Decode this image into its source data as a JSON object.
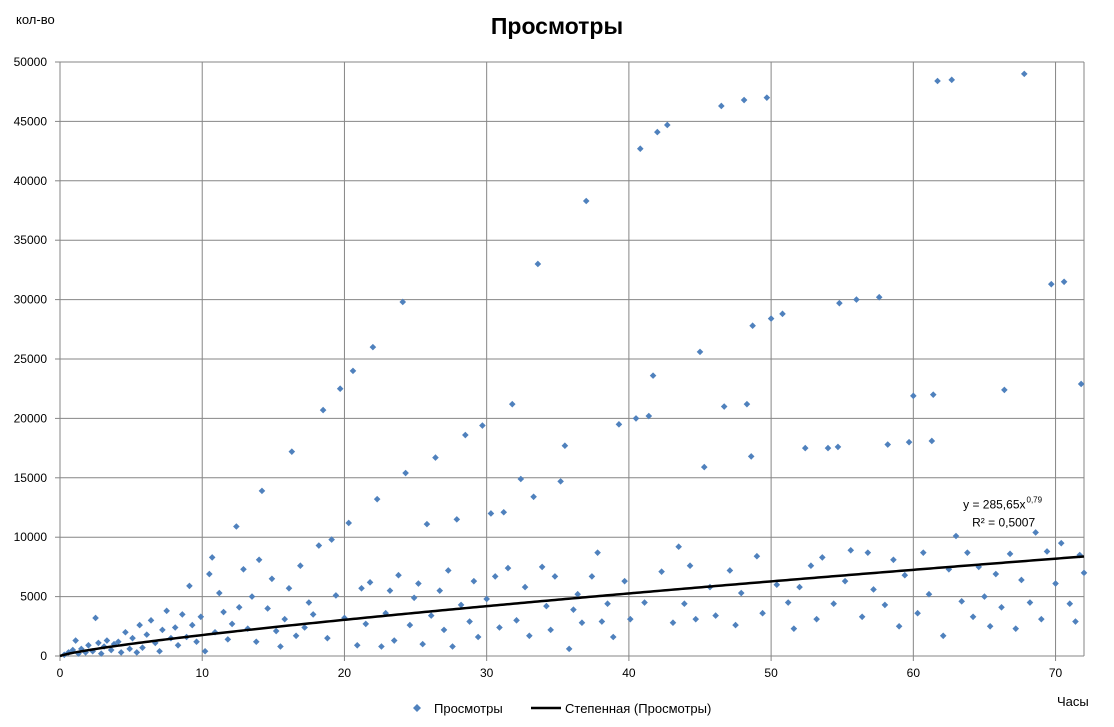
{
  "chart_data": {
    "type": "scatter",
    "title": "Просмотры",
    "xlabel": "Часы",
    "ylabel": "кол-во",
    "xlim": [
      0,
      72
    ],
    "ylim": [
      0,
      50000
    ],
    "x_ticks": [
      0,
      10,
      20,
      30,
      40,
      50,
      60,
      70
    ],
    "y_ticks": [
      0,
      5000,
      10000,
      15000,
      20000,
      25000,
      30000,
      35000,
      40000,
      45000,
      50000
    ],
    "grid": true,
    "legend_position": "bottom",
    "series": [
      {
        "name": "Просмотры",
        "kind": "scatter",
        "color": "#4f81bd",
        "points": [
          [
            0.3,
            100
          ],
          [
            0.6,
            300
          ],
          [
            0.9,
            500
          ],
          [
            1.1,
            1300
          ],
          [
            1.3,
            200
          ],
          [
            1.5,
            600
          ],
          [
            1.8,
            300
          ],
          [
            2.0,
            900
          ],
          [
            2.3,
            400
          ],
          [
            2.5,
            3200
          ],
          [
            2.7,
            1100
          ],
          [
            2.9,
            200
          ],
          [
            3.1,
            800
          ],
          [
            3.3,
            1300
          ],
          [
            3.6,
            500
          ],
          [
            3.8,
            1000
          ],
          [
            4.1,
            1200
          ],
          [
            4.3,
            300
          ],
          [
            4.6,
            2000
          ],
          [
            4.9,
            600
          ],
          [
            5.1,
            1500
          ],
          [
            5.4,
            300
          ],
          [
            5.6,
            2600
          ],
          [
            5.8,
            700
          ],
          [
            6.1,
            1800
          ],
          [
            6.4,
            3000
          ],
          [
            6.7,
            1100
          ],
          [
            7.0,
            400
          ],
          [
            7.2,
            2200
          ],
          [
            7.5,
            3800
          ],
          [
            7.8,
            1500
          ],
          [
            8.1,
            2400
          ],
          [
            8.3,
            900
          ],
          [
            8.6,
            3500
          ],
          [
            8.9,
            1600
          ],
          [
            9.1,
            5900
          ],
          [
            9.3,
            2600
          ],
          [
            9.6,
            1200
          ],
          [
            9.9,
            3300
          ],
          [
            10.2,
            400
          ],
          [
            10.5,
            6900
          ],
          [
            10.7,
            8300
          ],
          [
            10.9,
            2000
          ],
          [
            11.2,
            5300
          ],
          [
            11.5,
            3700
          ],
          [
            11.8,
            1400
          ],
          [
            12.1,
            2700
          ],
          [
            12.4,
            10900
          ],
          [
            12.6,
            4100
          ],
          [
            12.9,
            7300
          ],
          [
            13.2,
            2300
          ],
          [
            13.5,
            5000
          ],
          [
            13.8,
            1200
          ],
          [
            14.0,
            8100
          ],
          [
            14.2,
            13900
          ],
          [
            14.6,
            4000
          ],
          [
            14.9,
            6500
          ],
          [
            15.2,
            2100
          ],
          [
            15.5,
            800
          ],
          [
            15.8,
            3100
          ],
          [
            16.1,
            5700
          ],
          [
            16.3,
            17200
          ],
          [
            16.6,
            1700
          ],
          [
            16.9,
            7600
          ],
          [
            17.2,
            2400
          ],
          [
            17.5,
            4500
          ],
          [
            17.8,
            3500
          ],
          [
            18.2,
            9300
          ],
          [
            18.5,
            20700
          ],
          [
            18.8,
            1500
          ],
          [
            19.1,
            9800
          ],
          [
            19.4,
            5100
          ],
          [
            19.7,
            22500
          ],
          [
            20.0,
            3200
          ],
          [
            20.3,
            11200
          ],
          [
            20.6,
            24000
          ],
          [
            20.9,
            900
          ],
          [
            21.2,
            5700
          ],
          [
            21.5,
            2700
          ],
          [
            21.8,
            6200
          ],
          [
            22.0,
            26000
          ],
          [
            22.3,
            13200
          ],
          [
            22.6,
            800
          ],
          [
            22.9,
            3600
          ],
          [
            23.2,
            5500
          ],
          [
            23.5,
            1300
          ],
          [
            23.8,
            6800
          ],
          [
            24.1,
            29800
          ],
          [
            24.3,
            15400
          ],
          [
            24.6,
            2600
          ],
          [
            24.9,
            4900
          ],
          [
            25.2,
            6100
          ],
          [
            25.5,
            1000
          ],
          [
            25.8,
            11100
          ],
          [
            26.1,
            3400
          ],
          [
            26.4,
            16700
          ],
          [
            26.7,
            5500
          ],
          [
            27.0,
            2200
          ],
          [
            27.3,
            7200
          ],
          [
            27.6,
            800
          ],
          [
            27.9,
            11500
          ],
          [
            28.2,
            4300
          ],
          [
            28.5,
            18600
          ],
          [
            28.8,
            2900
          ],
          [
            29.1,
            6300
          ],
          [
            29.4,
            1600
          ],
          [
            29.7,
            19400
          ],
          [
            30.0,
            4800
          ],
          [
            30.3,
            12000
          ],
          [
            30.6,
            6700
          ],
          [
            30.9,
            2400
          ],
          [
            31.2,
            12100
          ],
          [
            31.5,
            7400
          ],
          [
            31.8,
            21200
          ],
          [
            32.1,
            3000
          ],
          [
            32.4,
            14900
          ],
          [
            32.7,
            5800
          ],
          [
            33.0,
            1700
          ],
          [
            33.3,
            13400
          ],
          [
            33.6,
            33000
          ],
          [
            33.9,
            7500
          ],
          [
            34.2,
            4200
          ],
          [
            34.5,
            2200
          ],
          [
            34.8,
            6700
          ],
          [
            35.2,
            14700
          ],
          [
            35.5,
            17700
          ],
          [
            35.8,
            600
          ],
          [
            36.1,
            3900
          ],
          [
            36.4,
            5200
          ],
          [
            36.7,
            2800
          ],
          [
            37.0,
            38300
          ],
          [
            37.4,
            6700
          ],
          [
            37.8,
            8700
          ],
          [
            38.1,
            2900
          ],
          [
            38.5,
            4400
          ],
          [
            38.9,
            1600
          ],
          [
            39.3,
            19500
          ],
          [
            39.7,
            6300
          ],
          [
            40.1,
            3100
          ],
          [
            40.5,
            20000
          ],
          [
            40.8,
            42700
          ],
          [
            41.1,
            4500
          ],
          [
            41.4,
            20200
          ],
          [
            41.7,
            23600
          ],
          [
            42.0,
            44100
          ],
          [
            42.3,
            7100
          ],
          [
            42.7,
            44700
          ],
          [
            43.1,
            2800
          ],
          [
            43.5,
            9200
          ],
          [
            43.9,
            4400
          ],
          [
            44.3,
            7600
          ],
          [
            44.7,
            3100
          ],
          [
            45.0,
            25600
          ],
          [
            45.3,
            15900
          ],
          [
            45.7,
            5800
          ],
          [
            46.1,
            3400
          ],
          [
            46.5,
            46300
          ],
          [
            46.7,
            21000
          ],
          [
            47.1,
            7200
          ],
          [
            47.5,
            2600
          ],
          [
            47.9,
            5300
          ],
          [
            48.1,
            46800
          ],
          [
            48.3,
            21200
          ],
          [
            48.6,
            16800
          ],
          [
            48.7,
            27800
          ],
          [
            49.0,
            8400
          ],
          [
            49.4,
            3600
          ],
          [
            49.7,
            47000
          ],
          [
            50.0,
            28400
          ],
          [
            50.4,
            6000
          ],
          [
            50.8,
            28800
          ],
          [
            51.2,
            4500
          ],
          [
            51.6,
            2300
          ],
          [
            52.0,
            5800
          ],
          [
            52.4,
            17500
          ],
          [
            52.8,
            7600
          ],
          [
            53.2,
            3100
          ],
          [
            53.6,
            8300
          ],
          [
            54.0,
            17500
          ],
          [
            54.4,
            4400
          ],
          [
            54.7,
            17600
          ],
          [
            54.8,
            29700
          ],
          [
            55.2,
            6300
          ],
          [
            55.6,
            8900
          ],
          [
            56.0,
            30000
          ],
          [
            56.4,
            3300
          ],
          [
            56.8,
            8700
          ],
          [
            57.2,
            5600
          ],
          [
            57.6,
            30200
          ],
          [
            58.0,
            4300
          ],
          [
            58.2,
            17800
          ],
          [
            58.6,
            8100
          ],
          [
            59.0,
            2500
          ],
          [
            59.4,
            6800
          ],
          [
            59.7,
            18000
          ],
          [
            60.0,
            21900
          ],
          [
            60.3,
            3600
          ],
          [
            60.7,
            8700
          ],
          [
            61.1,
            5200
          ],
          [
            61.3,
            18100
          ],
          [
            61.4,
            22000
          ],
          [
            61.7,
            48400
          ],
          [
            62.1,
            1700
          ],
          [
            62.5,
            7300
          ],
          [
            62.7,
            48500
          ],
          [
            63.0,
            10100
          ],
          [
            63.4,
            4600
          ],
          [
            63.8,
            8700
          ],
          [
            64.2,
            3300
          ],
          [
            64.6,
            7500
          ],
          [
            65.0,
            5000
          ],
          [
            65.4,
            2500
          ],
          [
            65.8,
            6900
          ],
          [
            66.2,
            4100
          ],
          [
            66.4,
            22400
          ],
          [
            66.8,
            8600
          ],
          [
            67.2,
            2300
          ],
          [
            67.6,
            6400
          ],
          [
            67.8,
            49000
          ],
          [
            68.2,
            4500
          ],
          [
            68.6,
            10400
          ],
          [
            69.0,
            3100
          ],
          [
            69.4,
            8800
          ],
          [
            69.7,
            31300
          ],
          [
            70.0,
            6100
          ],
          [
            70.4,
            9500
          ],
          [
            70.6,
            31500
          ],
          [
            71.0,
            4400
          ],
          [
            71.4,
            2900
          ],
          [
            71.7,
            8500
          ],
          [
            71.8,
            22900
          ],
          [
            72.0,
            7000
          ]
        ]
      },
      {
        "name": "Степенная (Просмотры)",
        "kind": "trendline",
        "color": "#000000",
        "model": "power",
        "coefficient": 285.65,
        "exponent": 0.79
      }
    ],
    "trendline_equation_lines": [
      "y = 285,65x",
      "0,79",
      "R² = 0,5007"
    ],
    "trendline_label_anchor": [
      63.5,
      12400
    ],
    "colors": {
      "grid": "#868686",
      "axis": "#868686",
      "marker": "#4f81bd"
    }
  }
}
